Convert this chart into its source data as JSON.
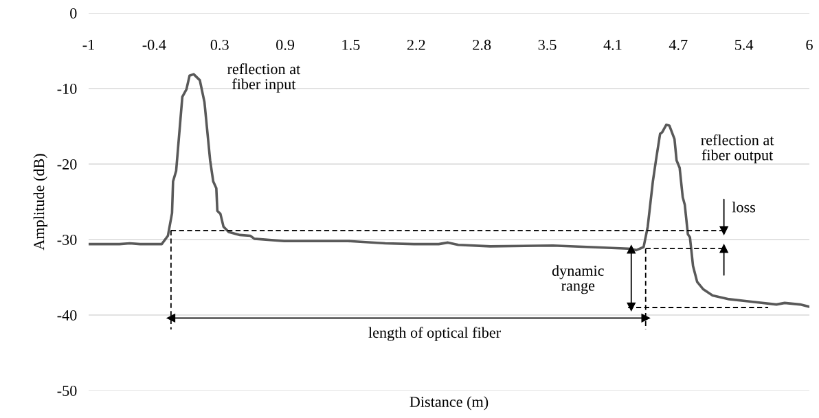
{
  "chart_data": {
    "type": "line",
    "xlabel": "Distance (m)",
    "ylabel": "Amplitude (dB)",
    "xlim": [
      -1,
      6
    ],
    "ylim": [
      -50,
      0
    ],
    "xticks": [
      -1,
      {
        "value": -0.3636,
        "label": "-0.4"
      },
      {
        "value": 0.2727,
        "label": "0.3"
      },
      {
        "value": 0.9091,
        "label": "0.9"
      },
      {
        "value": 1.5455,
        "label": "1.5"
      },
      {
        "value": 2.1818,
        "label": "2.2"
      },
      {
        "value": 2.8182,
        "label": "2.8"
      },
      {
        "value": 3.4545,
        "label": "3.5"
      },
      {
        "value": 4.0909,
        "label": "4.1"
      },
      {
        "value": 4.7273,
        "label": "4.7"
      },
      {
        "value": 5.3636,
        "label": "5.4"
      },
      6
    ],
    "yticks": [
      -50,
      -40,
      -30,
      -20,
      -10,
      0
    ],
    "grid": "y",
    "marker": "none",
    "line_style": "solid",
    "series": [
      {
        "color": "#595959",
        "x": [
          -1,
          -0.7,
          -0.6,
          -0.5,
          -0.29,
          -0.23,
          -0.19,
          -0.18,
          -0.15,
          -0.09,
          -0.05,
          -0.02,
          0.02,
          0.08,
          0.125,
          0.18,
          0.21,
          0.24,
          0.25,
          0.28,
          0.31,
          0.36,
          0.47,
          0.57,
          0.61,
          0.9,
          1.52,
          1.88,
          2.16,
          2.4,
          2.49,
          2.59,
          2.9,
          3.51,
          3.88,
          4.24,
          4.32,
          4.39,
          4.43,
          4.48,
          4.51,
          4.55,
          4.57,
          4.61,
          4.64,
          4.69,
          4.71,
          4.74,
          4.77,
          4.79,
          4.82,
          4.84,
          4.87,
          4.91,
          4.97,
          5.06,
          5.22,
          5.42,
          5.68,
          5.76,
          5.91,
          6.0
        ],
        "values": [
          -30.6,
          -30.6,
          -30.5,
          -30.6,
          -30.6,
          -29.5,
          -26.5,
          -22.3,
          -20.9,
          -11.1,
          -10.1,
          -8.3,
          -8.1,
          -8.9,
          -11.8,
          -19.5,
          -22.3,
          -23.2,
          -26.2,
          -26.6,
          -28.3,
          -29.0,
          -29.4,
          -29.5,
          -29.9,
          -30.2,
          -30.2,
          -30.5,
          -30.6,
          -30.6,
          -30.4,
          -30.7,
          -30.9,
          -30.8,
          -31.0,
          -31.2,
          -31.4,
          -31.0,
          -28.3,
          -22.3,
          -19.5,
          -16.0,
          -15.8,
          -14.8,
          -14.9,
          -16.7,
          -19.5,
          -20.5,
          -24.4,
          -25.4,
          -29.3,
          -29.7,
          -33.5,
          -35.6,
          -36.6,
          -37.4,
          -37.9,
          -38.2,
          -38.6,
          -38.4,
          -38.6,
          -38.9
        ]
      },
      {
        "color": "#000000",
        "line_style": "dashed",
        "x": [
          -0.2,
          5.16
        ],
        "values": [
          -28.8,
          -28.8
        ]
      },
      {
        "color": "#000000",
        "line_style": "dashed",
        "x": [
          -0.2,
          -0.2
        ],
        "values": [
          -28.8,
          -41.9
        ]
      },
      {
        "color": "#000000",
        "line_style": "dashed",
        "x": [
          4.41,
          5.16
        ],
        "values": [
          -31.2,
          -31.2
        ]
      },
      {
        "color": "#000000",
        "line_style": "dashed",
        "x": [
          4.41,
          4.41
        ],
        "values": [
          -31.2,
          -41.9
        ]
      },
      {
        "color": "#000000",
        "line_style": "dashed",
        "x": [
          4.24,
          5.6
        ],
        "values": [
          -39.0,
          -39.0
        ]
      },
      {
        "color": "#000000",
        "marker": "triangle",
        "x": [
          -0.2,
          2.1,
          4.41
        ],
        "values": [
          -40.4,
          -40.4,
          -40.4
        ]
      },
      {
        "color": "#000000",
        "marker": "triangle",
        "x": [
          4.27,
          4.27,
          4.27
        ],
        "values": [
          -31.3,
          -35.1,
          -38.9
        ]
      },
      {
        "color": "#000000",
        "marker": "triangle",
        "x": [
          5.17,
          5.17
        ],
        "values": [
          -24.7,
          -28.8
        ]
      },
      {
        "color": "#000000",
        "marker": "triangle",
        "x": [
          5.17,
          5.17
        ],
        "values": [
          -34.7,
          -31.2
        ]
      }
    ],
    "annotations": [
      "reflection at\nfiber input",
      "reflection at\nfiber output",
      "loss",
      "dynamic\nrange",
      "length of optical fiber"
    ]
  }
}
